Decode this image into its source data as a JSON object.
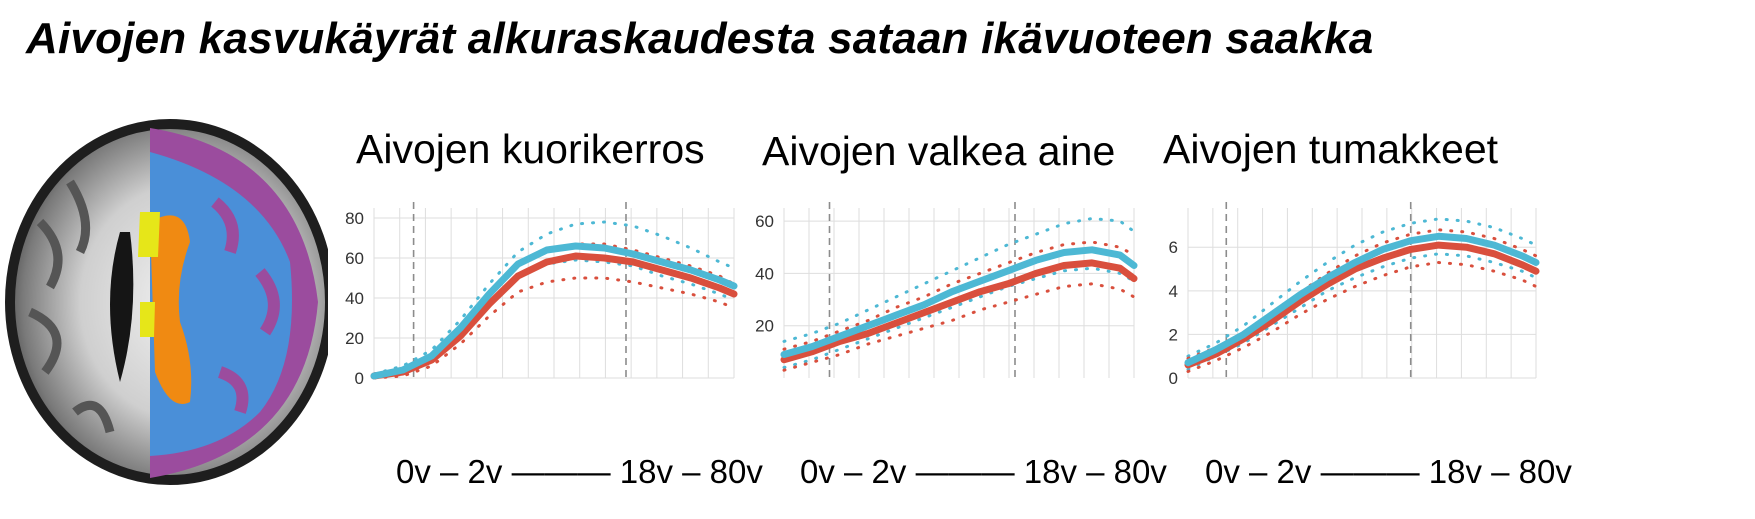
{
  "page": {
    "title": "Aivojen kasvukäyrät alkuraskaudesta sataan ikävuoteen saakka",
    "age_axis_label": "0v  –  2v ——— 18v – 80v"
  },
  "colors": {
    "blue": "#4db8d4",
    "red": "#d94f3d",
    "grid": "#dedede",
    "dashed": "#8c8c8c",
    "brain_purple": "#9b4c9e",
    "brain_blue": "#4a8fd8",
    "brain_orange": "#f08a12",
    "brain_yellow": "#e6e619"
  },
  "chart_data": [
    {
      "type": "line",
      "title": "Aivojen kuorikerros",
      "x": [
        0,
        0.08,
        0.16,
        0.24,
        0.32,
        0.4,
        0.48,
        0.56,
        0.64,
        0.72,
        0.8,
        0.88,
        0.96,
        1.0
      ],
      "series": [
        {
          "color": "blue",
          "values": [
            1,
            4,
            11,
            25,
            42,
            57,
            64,
            66,
            65,
            62,
            58,
            54,
            49,
            46
          ]
        },
        {
          "color": "red",
          "values": [
            1,
            3,
            9,
            21,
            37,
            51,
            58,
            61,
            60,
            58,
            54,
            50,
            45,
            42
          ]
        }
      ],
      "bands": [
        {
          "color": "blue",
          "upper": [
            2,
            6,
            14,
            29,
            47,
            63,
            72,
            77,
            78,
            76,
            71,
            65,
            58,
            55
          ],
          "lower": [
            0,
            2,
            8,
            21,
            37,
            51,
            57,
            59,
            58,
            56,
            51,
            47,
            42,
            39
          ]
        },
        {
          "color": "red",
          "upper": [
            2,
            5,
            12,
            25,
            42,
            56,
            63,
            67,
            67,
            64,
            60,
            56,
            51,
            47
          ],
          "lower": [
            0,
            1,
            6,
            17,
            31,
            43,
            48,
            50,
            50,
            48,
            45,
            42,
            38,
            35
          ]
        }
      ],
      "ylim": [
        0,
        85
      ],
      "yticks": [
        0,
        20,
        40,
        60,
        80
      ],
      "vlines": [
        0.11,
        0.7
      ]
    },
    {
      "type": "line",
      "title": "Aivojen valkea aine",
      "x": [
        0,
        0.08,
        0.16,
        0.24,
        0.32,
        0.4,
        0.48,
        0.56,
        0.64,
        0.72,
        0.8,
        0.88,
        0.96,
        1.0
      ],
      "series": [
        {
          "color": "blue",
          "values": [
            9,
            12,
            16,
            20,
            24,
            28,
            33,
            37,
            41,
            45,
            48,
            49,
            47,
            43
          ]
        },
        {
          "color": "red",
          "values": [
            7,
            10,
            14,
            17,
            21,
            25,
            29,
            33,
            36,
            40,
            43,
            44,
            42,
            38
          ]
        }
      ],
      "bands": [
        {
          "color": "blue",
          "upper": [
            14,
            17,
            21,
            26,
            31,
            36,
            41,
            46,
            51,
            55,
            59,
            61,
            60,
            56
          ],
          "lower": [
            4,
            7,
            11,
            15,
            19,
            23,
            27,
            31,
            35,
            38,
            41,
            42,
            40,
            37
          ]
        },
        {
          "color": "red",
          "upper": [
            11,
            14,
            18,
            22,
            27,
            31,
            36,
            40,
            44,
            48,
            51,
            52,
            50,
            47
          ],
          "lower": [
            3,
            6,
            9,
            13,
            16,
            19,
            22,
            26,
            29,
            32,
            35,
            36,
            34,
            31
          ]
        }
      ],
      "ylim": [
        0,
        65
      ],
      "yticks": [
        20,
        40,
        60
      ],
      "vlines": [
        0.13,
        0.66
      ]
    },
    {
      "type": "line",
      "title": "Aivojen tumakkeet",
      "x": [
        0,
        0.08,
        0.16,
        0.24,
        0.32,
        0.4,
        0.48,
        0.56,
        0.64,
        0.72,
        0.8,
        0.88,
        0.96,
        1.0
      ],
      "series": [
        {
          "color": "blue",
          "values": [
            0.7,
            1.3,
            2.0,
            2.9,
            3.8,
            4.6,
            5.3,
            5.9,
            6.3,
            6.5,
            6.4,
            6.1,
            5.6,
            5.3
          ]
        },
        {
          "color": "red",
          "values": [
            0.6,
            1.1,
            1.8,
            2.6,
            3.5,
            4.3,
            5.0,
            5.5,
            5.9,
            6.1,
            6.0,
            5.7,
            5.2,
            4.9
          ]
        }
      ],
      "bands": [
        {
          "color": "blue",
          "upper": [
            1.0,
            1.6,
            2.4,
            3.4,
            4.4,
            5.3,
            6.1,
            6.7,
            7.1,
            7.3,
            7.2,
            6.9,
            6.4,
            6.1
          ],
          "lower": [
            0.4,
            1.0,
            1.6,
            2.4,
            3.2,
            4.0,
            4.6,
            5.1,
            5.5,
            5.7,
            5.6,
            5.3,
            4.9,
            4.6
          ]
        },
        {
          "color": "red",
          "upper": [
            0.9,
            1.4,
            2.1,
            3.0,
            3.9,
            4.8,
            5.6,
            6.2,
            6.6,
            6.8,
            6.7,
            6.4,
            5.9,
            5.6
          ],
          "lower": [
            0.3,
            0.8,
            1.4,
            2.1,
            2.9,
            3.6,
            4.2,
            4.7,
            5.1,
            5.3,
            5.2,
            4.9,
            4.5,
            4.2
          ]
        }
      ],
      "ylim": [
        0,
        7.8
      ],
      "yticks": [
        0,
        2,
        4,
        6
      ],
      "vlines": [
        0.11,
        0.64
      ]
    }
  ]
}
